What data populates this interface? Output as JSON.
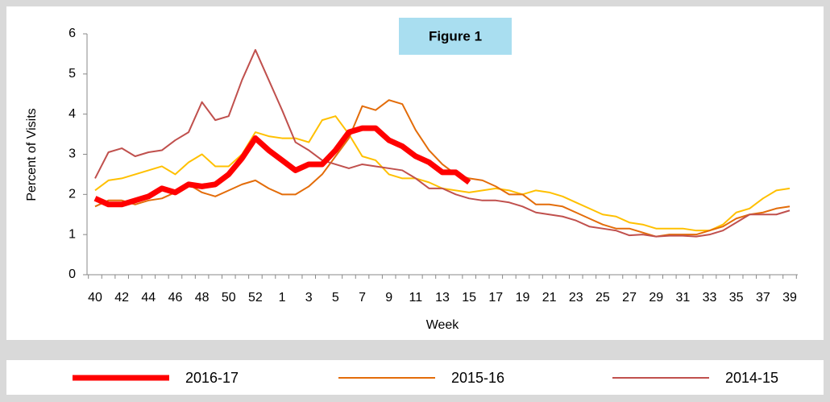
{
  "chart_data": {
    "type": "line",
    "annotation": "Figure 1",
    "y_label": "Percent of Visits",
    "x_label": "Week",
    "categories": [
      "40",
      null,
      "42",
      null,
      "44",
      null,
      "46",
      null,
      "48",
      null,
      "50",
      null,
      "52",
      null,
      "1",
      null,
      "3",
      null,
      "5",
      null,
      "7",
      null,
      "9",
      null,
      "11",
      null,
      "13",
      null,
      "15",
      null,
      "17",
      null,
      "19",
      null,
      "21",
      null,
      "23",
      null,
      "25",
      null,
      "27",
      null,
      "29",
      null,
      "31",
      null,
      "33",
      null,
      "35",
      null,
      "37",
      null,
      "39"
    ],
    "ylim": [
      0,
      6
    ],
    "yticks": [
      0,
      1,
      2,
      3,
      4,
      5,
      6
    ],
    "series": [
      {
        "color": "#ffc000",
        "width": 2,
        "values": [
          2.1,
          2.35,
          2.4,
          2.5,
          2.6,
          2.7,
          2.5,
          2.8,
          3.0,
          2.7,
          2.7,
          3.0,
          3.55,
          3.45,
          3.4,
          3.4,
          3.3,
          3.85,
          3.95,
          3.5,
          2.95,
          2.85,
          2.5,
          2.4,
          2.4,
          2.3,
          2.15,
          2.1,
          2.05,
          2.1,
          2.15,
          2.1,
          2.0,
          2.1,
          2.05,
          1.95,
          1.8,
          1.65,
          1.5,
          1.45,
          1.3,
          1.25,
          1.15,
          1.15,
          1.15,
          1.1,
          1.1,
          1.25,
          1.55,
          1.65,
          1.9,
          2.1,
          2.15
        ]
      },
      {
        "name": "2015-16",
        "color": "#e36c09",
        "width": 2,
        "values": [
          1.7,
          1.85,
          1.85,
          1.75,
          1.85,
          1.9,
          2.05,
          2.25,
          2.05,
          1.95,
          2.1,
          2.25,
          2.35,
          2.15,
          2.0,
          2.0,
          2.2,
          2.5,
          2.95,
          3.4,
          4.2,
          4.1,
          4.35,
          4.25,
          3.6,
          3.1,
          2.75,
          2.5,
          2.4,
          2.35,
          2.2,
          2.0,
          2.0,
          1.75,
          1.75,
          1.7,
          1.55,
          1.4,
          1.25,
          1.15,
          1.15,
          1.05,
          0.95,
          1.0,
          1.0,
          1.0,
          1.1,
          1.2,
          1.4,
          1.5,
          1.55,
          1.65,
          1.7
        ]
      },
      {
        "name": "2014-15",
        "color": "#c0504d",
        "width": 2,
        "values": [
          2.4,
          3.05,
          3.15,
          2.95,
          3.05,
          3.1,
          3.35,
          3.55,
          4.3,
          3.85,
          3.95,
          4.85,
          5.6,
          4.85,
          4.1,
          3.3,
          3.1,
          2.85,
          2.75,
          2.65,
          2.75,
          2.7,
          2.65,
          2.6,
          2.4,
          2.15,
          2.15,
          2.0,
          1.9,
          1.85,
          1.85,
          1.8,
          1.7,
          1.55,
          1.5,
          1.45,
          1.35,
          1.2,
          1.15,
          1.1,
          0.98,
          1.0,
          0.95,
          0.97,
          0.97,
          0.95,
          1.0,
          1.1,
          1.3,
          1.5,
          1.5,
          1.5,
          1.6
        ]
      },
      {
        "name": "2016-17",
        "color": "#ff0000",
        "width": 7,
        "values": [
          1.9,
          1.75,
          1.75,
          1.85,
          1.95,
          2.15,
          2.05,
          2.25,
          2.2,
          2.25,
          2.5,
          2.9,
          3.4,
          3.1,
          2.85,
          2.6,
          2.75,
          2.75,
          3.1,
          3.55,
          3.65,
          3.65,
          3.35,
          3.2,
          2.95,
          2.8,
          2.55,
          2.55,
          2.3,
          null,
          null,
          null,
          null,
          null,
          null,
          null,
          null,
          null,
          null,
          null,
          null,
          null,
          null,
          null,
          null,
          null,
          null,
          null,
          null,
          null,
          null,
          null,
          null
        ]
      }
    ],
    "legend_order": [
      3,
      1,
      2
    ]
  }
}
